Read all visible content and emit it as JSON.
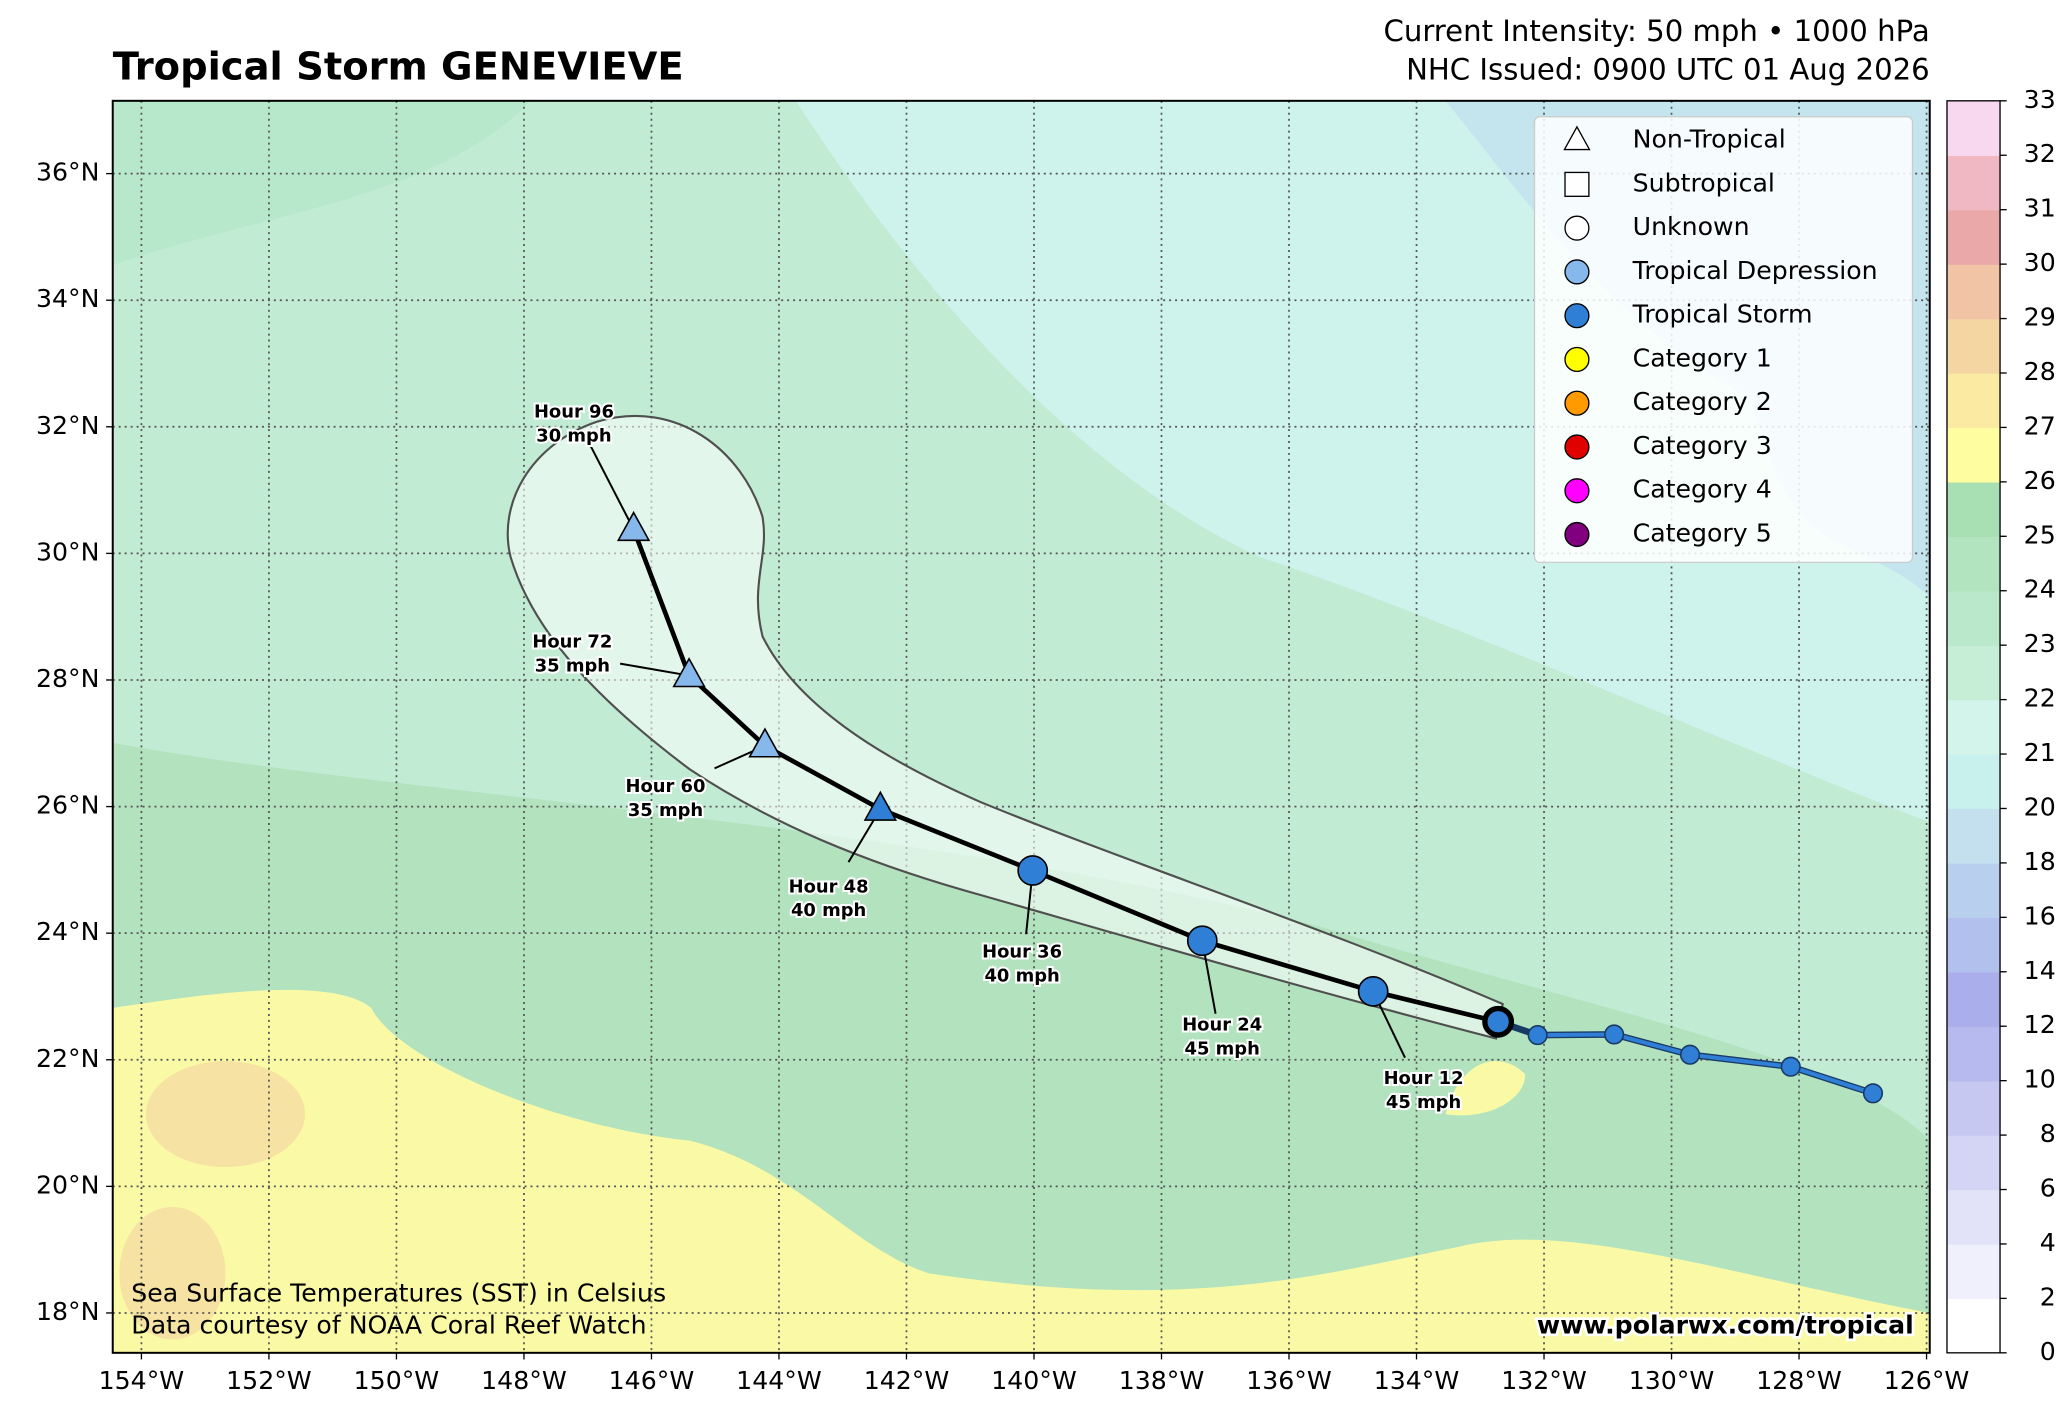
{
  "header": {
    "title": "Tropical Storm GENEVIEVE",
    "intensity": "Current Intensity: 50 mph • 1000 hPa",
    "issued": "NHC Issued: 0900 UTC 01 Aug 2026"
  },
  "map": {
    "lonlim": [
      -154.45,
      -125.95
    ],
    "latlim": [
      17.37,
      37.15
    ],
    "lonticks": [
      {
        "value": -154,
        "label": "154°W"
      },
      {
        "value": -152,
        "label": "152°W"
      },
      {
        "value": -150,
        "label": "150°W"
      },
      {
        "value": -148,
        "label": "148°W"
      },
      {
        "value": -146,
        "label": "146°W"
      },
      {
        "value": -144,
        "label": "144°W"
      },
      {
        "value": -142,
        "label": "142°W"
      },
      {
        "value": -140,
        "label": "140°W"
      },
      {
        "value": -138,
        "label": "138°W"
      },
      {
        "value": -136,
        "label": "136°W"
      },
      {
        "value": -134,
        "label": "134°W"
      },
      {
        "value": -132,
        "label": "132°W"
      },
      {
        "value": -130,
        "label": "130°W"
      },
      {
        "value": -128,
        "label": "128°W"
      },
      {
        "value": -126,
        "label": "126°W"
      }
    ],
    "latticks": [
      {
        "value": 18,
        "label": "18°N"
      },
      {
        "value": 20,
        "label": "20°N"
      },
      {
        "value": 22,
        "label": "22°N"
      },
      {
        "value": 24,
        "label": "24°N"
      },
      {
        "value": 26,
        "label": "26°N"
      },
      {
        "value": 28,
        "label": "28°N"
      },
      {
        "value": 30,
        "label": "30°N"
      },
      {
        "value": 32,
        "label": "32°N"
      },
      {
        "value": 34,
        "label": "34°N"
      },
      {
        "value": 36,
        "label": "36°N"
      }
    ],
    "grid": true
  },
  "past_track": {
    "color": "#2f7fd6",
    "lon": [
      -132.1,
      -130.9,
      -129.71,
      -128.13,
      -126.84
    ],
    "lat": [
      22.39,
      22.4,
      22.08,
      21.89,
      21.47
    ]
  },
  "forecast": {
    "line_color": "#000000",
    "points": [
      {
        "lon": -132.72,
        "lat": 22.6,
        "symbol": "circle",
        "color": "#2f7fd6"
      },
      {
        "lon": -134.68,
        "lat": 23.08,
        "symbol": "circle",
        "color": "#2f7fd6",
        "hour": "Hour 12",
        "wind": "45 mph"
      },
      {
        "lon": -137.36,
        "lat": 23.88,
        "symbol": "circle",
        "color": "#2f7fd6",
        "hour": "Hour 24",
        "wind": "45 mph"
      },
      {
        "lon": -140.02,
        "lat": 24.99,
        "symbol": "circle",
        "color": "#2f7fd6",
        "hour": "Hour 36",
        "wind": "40 mph"
      },
      {
        "lon": -142.41,
        "lat": 25.96,
        "symbol": "triangle",
        "color": "#2f7fd6",
        "hour": "Hour 48",
        "wind": "40 mph"
      },
      {
        "lon": -144.22,
        "lat": 26.96,
        "symbol": "triangle",
        "color": "#86b8ec",
        "hour": "Hour 60",
        "wind": "35 mph"
      },
      {
        "lon": -145.41,
        "lat": 28.07,
        "symbol": "triangle",
        "color": "#86b8ec",
        "hour": "Hour 72",
        "wind": "35 mph"
      },
      {
        "lon": -146.28,
        "lat": 30.38,
        "symbol": "triangle",
        "color": "#86b8ec",
        "hour": "Hour 96",
        "wind": "30 mph"
      }
    ]
  },
  "legend": [
    {
      "name": "Non-Tropical",
      "symbol": "triangle",
      "color": "none"
    },
    {
      "name": "Subtropical",
      "symbol": "square",
      "color": "none"
    },
    {
      "name": "Unknown",
      "symbol": "circle",
      "color": "none"
    },
    {
      "name": "Tropical Depression",
      "symbol": "circle",
      "color": "#86b8ec"
    },
    {
      "name": "Tropical Storm",
      "symbol": "circle",
      "color": "#2f7fd6"
    },
    {
      "name": "Category 1",
      "symbol": "circle",
      "color": "#ffff00"
    },
    {
      "name": "Category 2",
      "symbol": "circle",
      "color": "#ff9a00"
    },
    {
      "name": "Category 3",
      "symbol": "circle",
      "color": "#e00000"
    },
    {
      "name": "Category 4",
      "symbol": "circle",
      "color": "#ff00ff"
    },
    {
      "name": "Category 5",
      "symbol": "circle",
      "color": "#800080"
    }
  ],
  "colorbar": {
    "ticks": [
      0,
      2,
      4,
      6,
      8,
      10,
      12,
      14,
      16,
      18,
      20,
      21,
      22,
      23,
      24,
      25,
      26,
      27,
      28,
      29,
      30,
      31,
      32,
      33
    ],
    "colors": [
      "#ffffff",
      "#f0f0fc",
      "#e2e2f8",
      "#d4d4f4",
      "#c6c8f2",
      "#b6baee",
      "#aaaeea",
      "#b2c0ee",
      "#b8d0ee",
      "#c4e0ee",
      "#c8f0ec",
      "#d2f4ea",
      "#c6eed6",
      "#bae8ca",
      "#b2e4c0",
      "#a8e0b4",
      "#fefea0",
      "#faeaa2",
      "#f4d6a2",
      "#f0c4a4",
      "#eaa8a8",
      "#f0b8c2",
      "#f8d8ee"
    ]
  },
  "credits": {
    "sst": "Sea Surface Temperatures (SST) in Celsius",
    "source": "Data courtesy of NOAA Coral Reef Watch",
    "url": "www.polarwx.com/tropical"
  }
}
